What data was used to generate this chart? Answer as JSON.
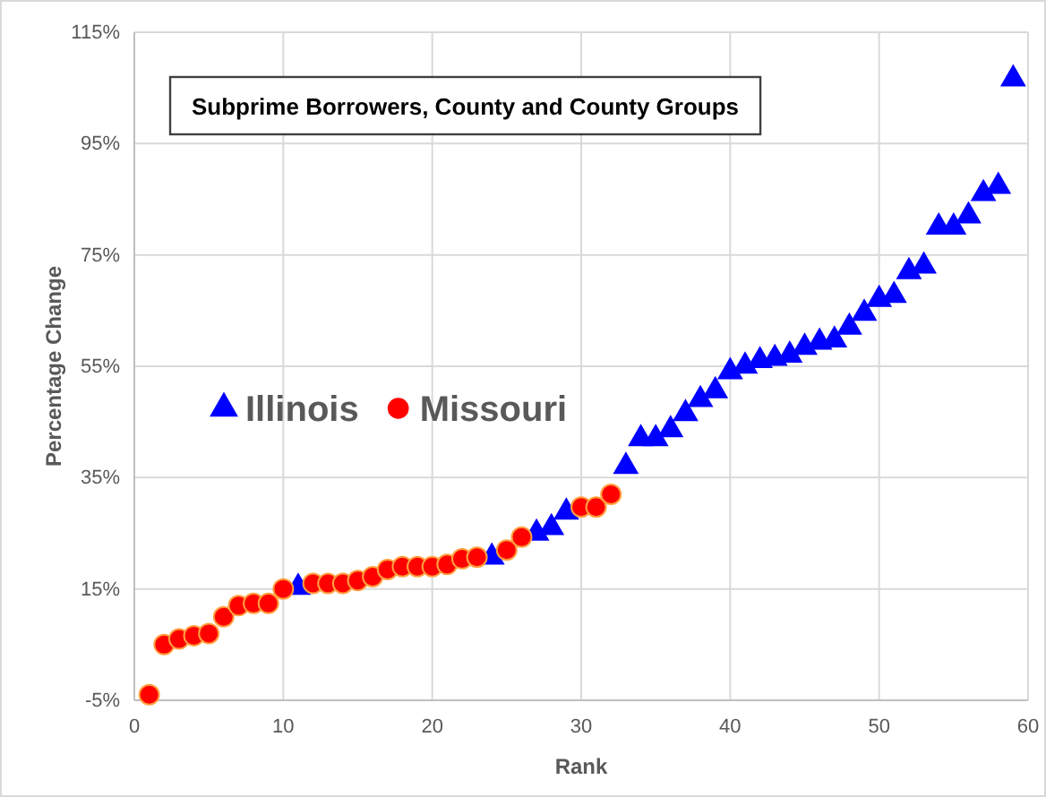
{
  "chart_data": {
    "type": "scatter",
    "title": "Subprime Borrowers, County and County Groups",
    "xlabel": "Rank",
    "ylabel": "Percentage Change",
    "xlim": [
      0,
      60
    ],
    "xticks": [
      0,
      10,
      20,
      30,
      40,
      50,
      60
    ],
    "ylim": [
      -5,
      115
    ],
    "yticks": [
      {
        "value": -5,
        "label": "-5%"
      },
      {
        "value": 15,
        "label": "15%"
      },
      {
        "value": 35,
        "label": "35%"
      },
      {
        "value": 55,
        "label": "55%"
      },
      {
        "value": 75,
        "label": "75%"
      },
      {
        "value": 95,
        "label": "95%"
      },
      {
        "value": 115,
        "label": "115%"
      }
    ],
    "grid": true,
    "legend": "left",
    "series": [
      {
        "name": "Illinois",
        "color": "#0000ff",
        "marker": "triangle",
        "x": [
          11,
          24,
          27,
          28,
          29,
          33,
          34,
          35,
          36,
          37,
          38,
          39,
          40,
          41,
          42,
          43,
          44,
          45,
          46,
          47,
          48,
          49,
          50,
          51,
          52,
          53,
          54,
          55,
          56,
          57,
          58,
          59
        ],
        "values": [
          15.3,
          20.7,
          25,
          26,
          28.8,
          37,
          42,
          42,
          43.6,
          46.5,
          49,
          50.6,
          54,
          55,
          56,
          56.4,
          57,
          58.4,
          59.3,
          59.7,
          62,
          64.5,
          67,
          67.7,
          72,
          73,
          80,
          80,
          82,
          86,
          87.3,
          106.6
        ]
      },
      {
        "name": "Missouri",
        "color": "#ff0000",
        "marker": "circle",
        "x": [
          1,
          2,
          3,
          4,
          5,
          6,
          7,
          8,
          9,
          10,
          12,
          13,
          14,
          15,
          16,
          17,
          18,
          19,
          20,
          21,
          22,
          23,
          25,
          26,
          30,
          31,
          32
        ],
        "values": [
          -4,
          5,
          6,
          6.6,
          7,
          10,
          12,
          12.4,
          12.4,
          15,
          16,
          16,
          16,
          16.5,
          17.2,
          18.5,
          19,
          19,
          19,
          19.4,
          20.4,
          20.7,
          22,
          24.3,
          29.7,
          29.7,
          32
        ]
      }
    ]
  }
}
